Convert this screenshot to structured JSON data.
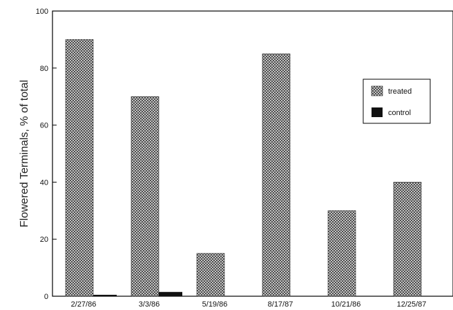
{
  "chart_data": {
    "type": "bar",
    "title": "",
    "xlabel": "",
    "ylabel": "Flowered Terminals, % of total",
    "ylim": [
      0,
      100
    ],
    "yticks": [
      0,
      20,
      40,
      60,
      80,
      100
    ],
    "categories": [
      "2/27/86",
      "3/3/86",
      "5/19/86",
      "8/17/87",
      "10/21/86",
      "12/25/87"
    ],
    "series": [
      {
        "name": "treated",
        "values": [
          90,
          70,
          15,
          85,
          30,
          40
        ],
        "pattern": "crosshatch",
        "color": "#555555"
      },
      {
        "name": "control",
        "values": [
          0.5,
          1.5,
          0,
          0,
          0,
          0
        ],
        "pattern": "solid",
        "color": "#111111"
      }
    ],
    "legend": {
      "position": "right",
      "entries": [
        "treated",
        "control"
      ]
    },
    "grid": false
  }
}
